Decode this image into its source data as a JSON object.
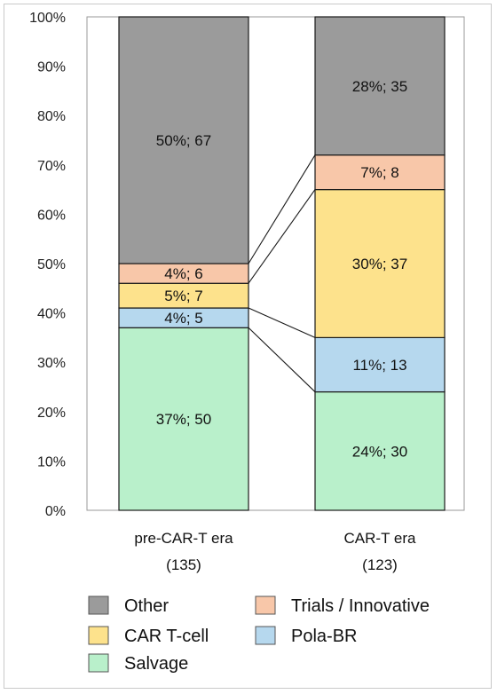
{
  "chart_data": {
    "type": "bar",
    "stacked": true,
    "percent": true,
    "categories": [
      {
        "line1": "pre-CAR-T era",
        "line2": "(135)"
      },
      {
        "line1": "CAR-T era",
        "line2": "(123)"
      }
    ],
    "series": [
      {
        "name": "Salvage",
        "color": "#b9f0cb",
        "values": [
          37,
          24
        ],
        "labels": [
          "37%; 50",
          "24%; 30"
        ]
      },
      {
        "name": "Pola-BR",
        "color": "#b6d8ee",
        "values": [
          4,
          11
        ],
        "labels": [
          "4%; 5",
          "11%; 13"
        ]
      },
      {
        "name": "CAR T-cell",
        "color": "#fde28c",
        "values": [
          5,
          30
        ],
        "labels": [
          "5%; 7",
          "30%; 37"
        ]
      },
      {
        "name": "Trials / Innovative",
        "color": "#f8c7a9",
        "values": [
          4,
          7
        ],
        "labels": [
          "4%; 6",
          "7%; 8"
        ]
      },
      {
        "name": "Other",
        "color": "#9b9b9b",
        "values": [
          50,
          28
        ],
        "labels": [
          "50%; 67",
          "28%; 35"
        ]
      }
    ],
    "ylim": [
      0,
      100
    ],
    "yticks": [
      "0%",
      "10%",
      "20%",
      "30%",
      "40%",
      "50%",
      "60%",
      "70%",
      "80%",
      "90%",
      "100%"
    ],
    "legend_order": [
      "Other",
      "Trials / Innovative",
      "CAR T-cell",
      "Pola-BR",
      "Salvage"
    ],
    "legend_position": "bottom",
    "grid": false,
    "connector_lines": true
  }
}
